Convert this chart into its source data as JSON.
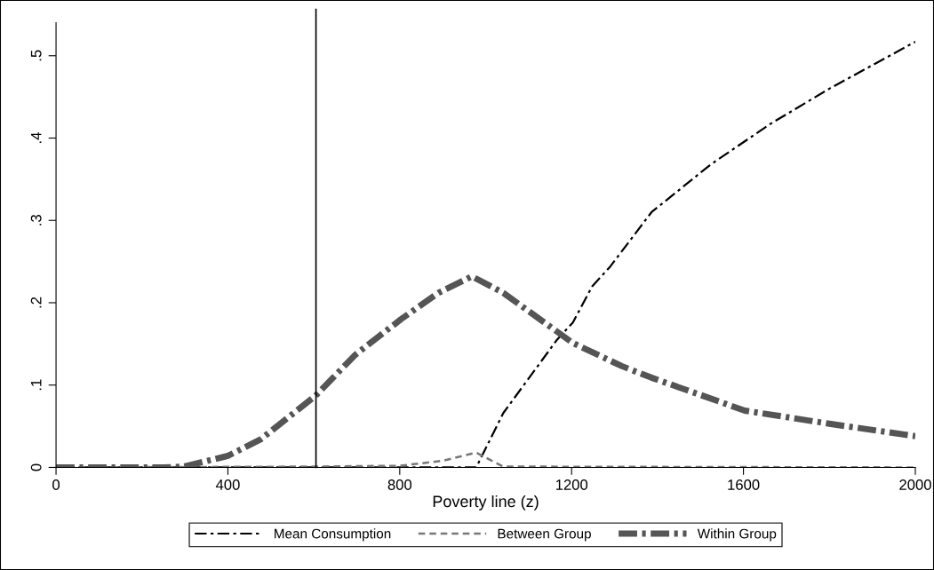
{
  "chart_data": {
    "type": "line",
    "xlabel": "Poverty line (z)",
    "xlim": [
      0,
      2000
    ],
    "xticks": [
      0,
      400,
      800,
      1200,
      1600,
      2000
    ],
    "ylim": [
      0,
      0.54
    ],
    "yticks": [
      {
        "value": 0,
        "label": "0"
      },
      {
        "value": 0.1,
        "label": ".1"
      },
      {
        "value": 0.2,
        "label": ".2"
      },
      {
        "value": 0.3,
        "label": ".3"
      },
      {
        "value": 0.4,
        "label": ".4"
      },
      {
        "value": 0.5,
        "label": ".5"
      }
    ],
    "grid": false,
    "legend": "bottom",
    "marker": "none",
    "ref_lines": [
      {
        "axis": "x",
        "value": 605,
        "color": "#000000",
        "line_style": "solid"
      }
    ],
    "series": [
      {
        "name": "Mean Consumption",
        "color": "#000000",
        "line_style": "dashdot",
        "x": [
          0,
          978,
          1041,
          1166,
          1203,
          1248,
          1290,
          1386,
          1524,
          1662,
          1800,
          2000
        ],
        "values": [
          0,
          0,
          0.066,
          0.155,
          0.176,
          0.22,
          0.244,
          0.31,
          0.368,
          0.417,
          0.46,
          0.517
        ]
      },
      {
        "name": "Between Group",
        "color": "#777777",
        "line_style": "dashed",
        "x": [
          0,
          600,
          800,
          900,
          978,
          1040,
          2000
        ],
        "values": [
          0,
          0.001,
          0.002,
          0.008,
          0.018,
          0.001,
          0
        ]
      },
      {
        "name": "Within Group",
        "color": "#555555",
        "line_style": "dashdot_thick",
        "x": [
          0,
          250,
          297,
          400,
          476,
          604,
          697,
          803,
          890,
          968,
          1041,
          1203,
          1317,
          1386,
          1603,
          1800,
          2000
        ],
        "values": [
          0,
          0,
          0.001,
          0.014,
          0.034,
          0.087,
          0.137,
          0.18,
          0.212,
          0.232,
          0.212,
          0.151,
          0.123,
          0.109,
          0.069,
          0.053,
          0.038
        ]
      }
    ]
  }
}
